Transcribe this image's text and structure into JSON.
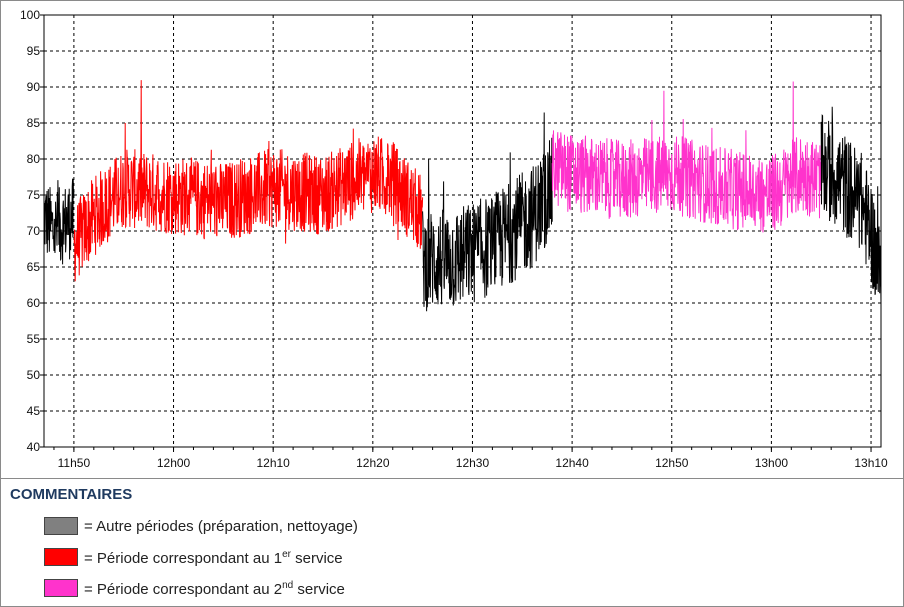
{
  "chart_data": {
    "type": "line",
    "title": "",
    "xlabel": "",
    "ylabel": "",
    "ylim": [
      40,
      100
    ],
    "y_ticks": [
      40,
      45,
      50,
      55,
      60,
      65,
      70,
      75,
      80,
      85,
      90,
      95,
      100
    ],
    "x_range_minutes": [
      "11h47",
      "13h11"
    ],
    "x_ticks": [
      "11h50",
      "12h00",
      "12h10",
      "12h20",
      "12h30",
      "12h40",
      "12h50",
      "13h00",
      "13h10"
    ],
    "grid": true,
    "grid_style": "dashed",
    "series": [
      {
        "segment": "preparation",
        "color": "#000000",
        "from": "11h47",
        "to": "11h50",
        "x": [
          "11h47",
          "11h48",
          "11h49",
          "11h50"
        ],
        "y": [
          72,
          70,
          71,
          72
        ]
      },
      {
        "segment": "service_1",
        "color": "#ff0000",
        "from": "11h50",
        "to": "12h25",
        "x": [
          "11h50",
          "11h52",
          "11h55",
          "12h00",
          "12h05",
          "12h10",
          "12h15",
          "12h18",
          "12h20",
          "12h22",
          "12h25"
        ],
        "y": [
          68,
          72,
          76,
          75,
          74,
          76,
          75,
          77,
          78,
          77,
          72
        ]
      },
      {
        "segment": "cleaning",
        "color": "#000000",
        "from": "12h25",
        "to": "12h38",
        "x": [
          "12h25",
          "12h28",
          "12h30",
          "12h32",
          "12h34",
          "12h36",
          "12h38"
        ],
        "y": [
          66,
          66,
          67,
          68,
          70,
          72,
          76
        ]
      },
      {
        "segment": "service_2",
        "color": "#ff33cc",
        "from": "12h38",
        "to": "13h05",
        "x": [
          "12h38",
          "12h40",
          "12h45",
          "12h50",
          "12h55",
          "13h00",
          "13h03",
          "13h05"
        ],
        "y": [
          79,
          78,
          77,
          78,
          76,
          75,
          78,
          77
        ]
      },
      {
        "segment": "after",
        "color": "#000000",
        "from": "13h05",
        "to": "13h11",
        "x": [
          "13h05",
          "13h07",
          "13h09",
          "13h10",
          "13h11"
        ],
        "y": [
          79,
          77,
          74,
          70,
          63
        ]
      }
    ],
    "legend_placement": "bottom-left"
  },
  "comments": {
    "title": "COMMENTAIRES",
    "items": [
      {
        "color": "#808080",
        "text": "= Autre périodes (préparation, nettoyage)",
        "sup": "",
        "text_after": ""
      },
      {
        "color": "#ff0000",
        "text": "= Période correspondant au 1",
        "sup": "er",
        "text_after": " service"
      },
      {
        "color": "#ff33cc",
        "text": "= Période correspondant au 2",
        "sup": "nd",
        "text_after": " service"
      }
    ]
  }
}
